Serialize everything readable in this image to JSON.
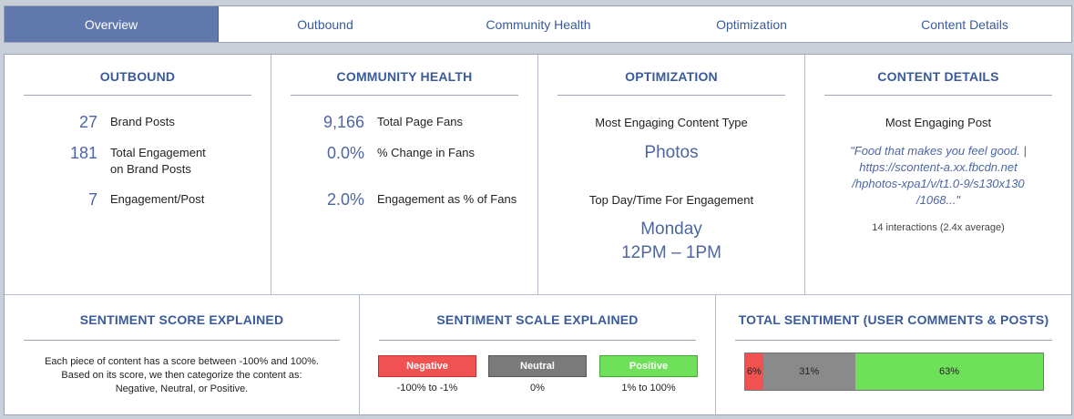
{
  "tabs": [
    {
      "label": "Overview"
    },
    {
      "label": "Outbound"
    },
    {
      "label": "Community Health"
    },
    {
      "label": "Optimization"
    },
    {
      "label": "Content Details"
    }
  ],
  "outbound": {
    "title": "OUTBOUND",
    "stats": [
      {
        "value": "27",
        "label": "Brand Posts"
      },
      {
        "value": "181",
        "label_1": "Total Engagement",
        "label_2": "on Brand Posts"
      },
      {
        "value": "7",
        "label": "Engagement/Post"
      }
    ]
  },
  "community": {
    "title": "COMMUNITY HEALTH",
    "stats": [
      {
        "value": "9,166",
        "label": "Total Page Fans"
      },
      {
        "value": "0.0%",
        "label": "% Change in Fans"
      },
      {
        "value": "2.0%",
        "label": "Engagement as % of Fans"
      }
    ]
  },
  "optimization": {
    "title": "OPTIMIZATION",
    "content_type_label": "Most Engaging Content Type",
    "content_type_value": "Photos",
    "top_time_label": "Top Day/Time For Engagement",
    "top_day": "Monday",
    "top_time": "12PM – 1PM"
  },
  "content_details": {
    "title": "CONTENT DETAILS",
    "post_label": "Most Engaging Post",
    "quote_lines": [
      "\"Food that makes you feel good. |",
      "https://scontent-a.xx.fbcdn.net",
      "/hphotos-xpa1/v/t1.0-9/s130x130",
      "/1068...\""
    ],
    "interactions": "14 interactions (2.4x average)"
  },
  "sentiment_score": {
    "title": "SENTIMENT SCORE EXPLAINED",
    "lines": [
      "Each piece of content has a score between -100% and 100%.",
      "Based on its score, we then categorize the content as:",
      "Negative, Neutral, or Positive."
    ]
  },
  "sentiment_scale": {
    "title": "SENTIMENT SCALE EXPLAINED",
    "items": [
      {
        "label": "Negative",
        "range": "-100% to -1%",
        "color": "#f05252",
        "border": "#c03030"
      },
      {
        "label": "Neutral",
        "range": "0%",
        "color": "#7a7a7a",
        "border": "#555555"
      },
      {
        "label": "Positive",
        "range": "1% to 100%",
        "color": "#6ee05a",
        "border": "#3faa30"
      }
    ]
  },
  "total_sentiment": {
    "title": "TOTAL SENTIMENT (USER COMMENTS & POSTS)",
    "segments": [
      {
        "label": "6%",
        "share": 6,
        "color": "#f05252"
      },
      {
        "label": "31%",
        "share": 31,
        "color": "#8a8a8a"
      },
      {
        "label": "63%",
        "share": 63,
        "color": "#6ee05a"
      }
    ]
  },
  "colors": {
    "accent": "#4c66a4",
    "tab_active": "#6178ad"
  }
}
